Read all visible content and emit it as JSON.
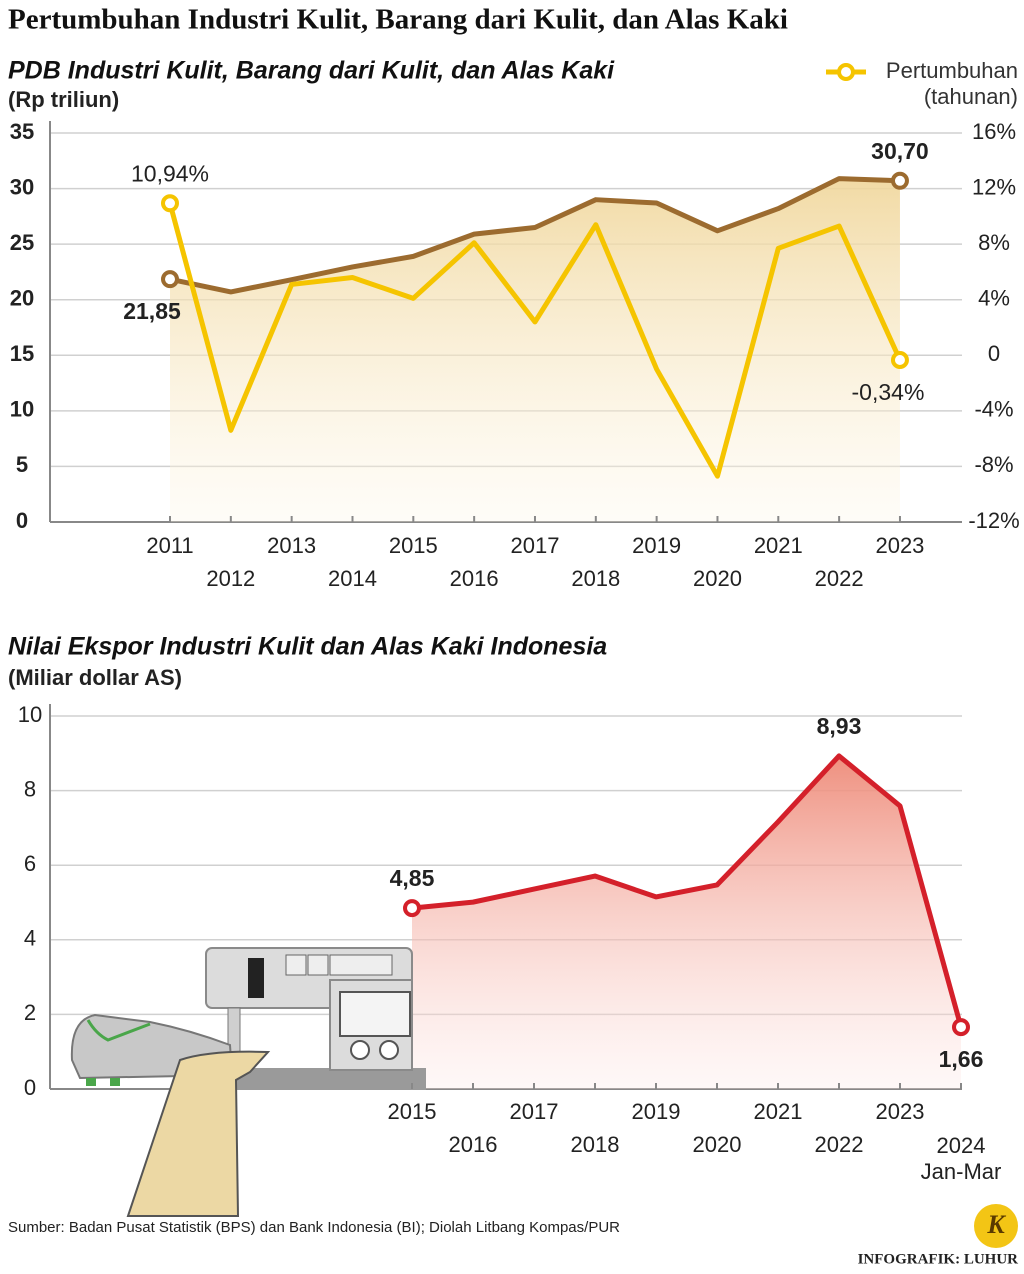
{
  "title": "Pertumbuhan Industri Kulit, Barang dari Kulit, dan Alas Kaki",
  "chart_data": [
    {
      "type": "line",
      "title": "PDB Industri Kulit, Barang dari Kulit, dan Alas Kaki",
      "y_label": "(Rp triliun)",
      "categories": [
        "2011",
        "2012",
        "2013",
        "2014",
        "2015",
        "2016",
        "2017",
        "2018",
        "2019",
        "2020",
        "2021",
        "2022",
        "2023"
      ],
      "series": [
        {
          "color": "#9c6b2f",
          "values": [
            21.85,
            20.7,
            21.8,
            22.95,
            23.9,
            25.9,
            26.5,
            29.0,
            28.7,
            26.2,
            28.2,
            30.9,
            30.7
          ],
          "value_labels": [
            "21,85",
            null,
            null,
            null,
            null,
            null,
            null,
            null,
            null,
            null,
            null,
            null,
            "30,70"
          ]
        },
        {
          "name": "Pertumbuhan\n(tahunan)",
          "color": "#f5c400",
          "axis": "y2",
          "values": [
            10.94,
            -5.4,
            5.1,
            5.6,
            4.1,
            8.1,
            2.4,
            9.4,
            -1.0,
            -8.7,
            7.7,
            9.3,
            -0.34
          ],
          "value_labels": [
            "10,94%",
            null,
            null,
            null,
            null,
            null,
            null,
            null,
            null,
            null,
            null,
            null,
            "-0,34%"
          ]
        }
      ],
      "ylim": [
        0,
        35
      ],
      "yticks": [
        0,
        5,
        10,
        15,
        20,
        25,
        30,
        35
      ],
      "y2lim": [
        -12,
        16
      ],
      "y2ticks": [
        {
          "value": -12,
          "label": "-12%"
        },
        {
          "value": -8,
          "label": "-8%"
        },
        {
          "value": -4,
          "label": "-4%"
        },
        0,
        {
          "value": 4,
          "label": "4%"
        },
        {
          "value": 8,
          "label": "8%"
        },
        {
          "value": 12,
          "label": "12%"
        },
        {
          "value": 16,
          "label": "16%"
        }
      ],
      "grid": true,
      "legend": "top-right"
    },
    {
      "type": "line",
      "title": "Nilai Ekspor Industri Kulit dan Alas Kaki Indonesia",
      "y_label": "(Miliar dollar AS)",
      "categories": [
        "2015",
        "2016",
        "2017",
        "2018",
        "2019",
        "2020",
        "2021",
        "2022",
        "2023",
        "2024\nJan-Mar"
      ],
      "series": [
        {
          "color": "#d4202a",
          "values": [
            4.85,
            5.01,
            5.36,
            5.71,
            5.15,
            5.47,
            7.16,
            8.93,
            7.59,
            1.66
          ],
          "value_labels": [
            "4,85",
            null,
            null,
            null,
            null,
            null,
            null,
            "8,93",
            null,
            "1,66"
          ]
        }
      ],
      "ylim": [
        0,
        10
      ],
      "yticks": [
        0,
        2,
        4,
        6,
        8,
        10
      ],
      "grid": true
    }
  ],
  "source": "Sumber: Badan Pusat Statistik (BPS) dan Bank Indonesia (BI); Diolah Litbang Kompas/PUR",
  "logo": "K",
  "credit": "INFOGRAFIK: LUHUR"
}
